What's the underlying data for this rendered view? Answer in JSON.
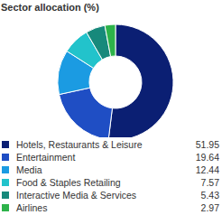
{
  "chart_data": {
    "type": "pie",
    "title": "Sector allocation (%)",
    "categories": [
      "Hotels, Restaurants & Leisure",
      "Entertainment",
      "Media",
      "Food & Staples Retailing",
      "Interactive Media & Services",
      "Airlines"
    ],
    "values": [
      51.95,
      19.64,
      12.44,
      7.57,
      5.43,
      2.97
    ],
    "colors": [
      "#0b1f73",
      "#1f4ec4",
      "#1b9be2",
      "#22c3cb",
      "#17897b",
      "#2db34a"
    ],
    "legend": "bottom"
  }
}
